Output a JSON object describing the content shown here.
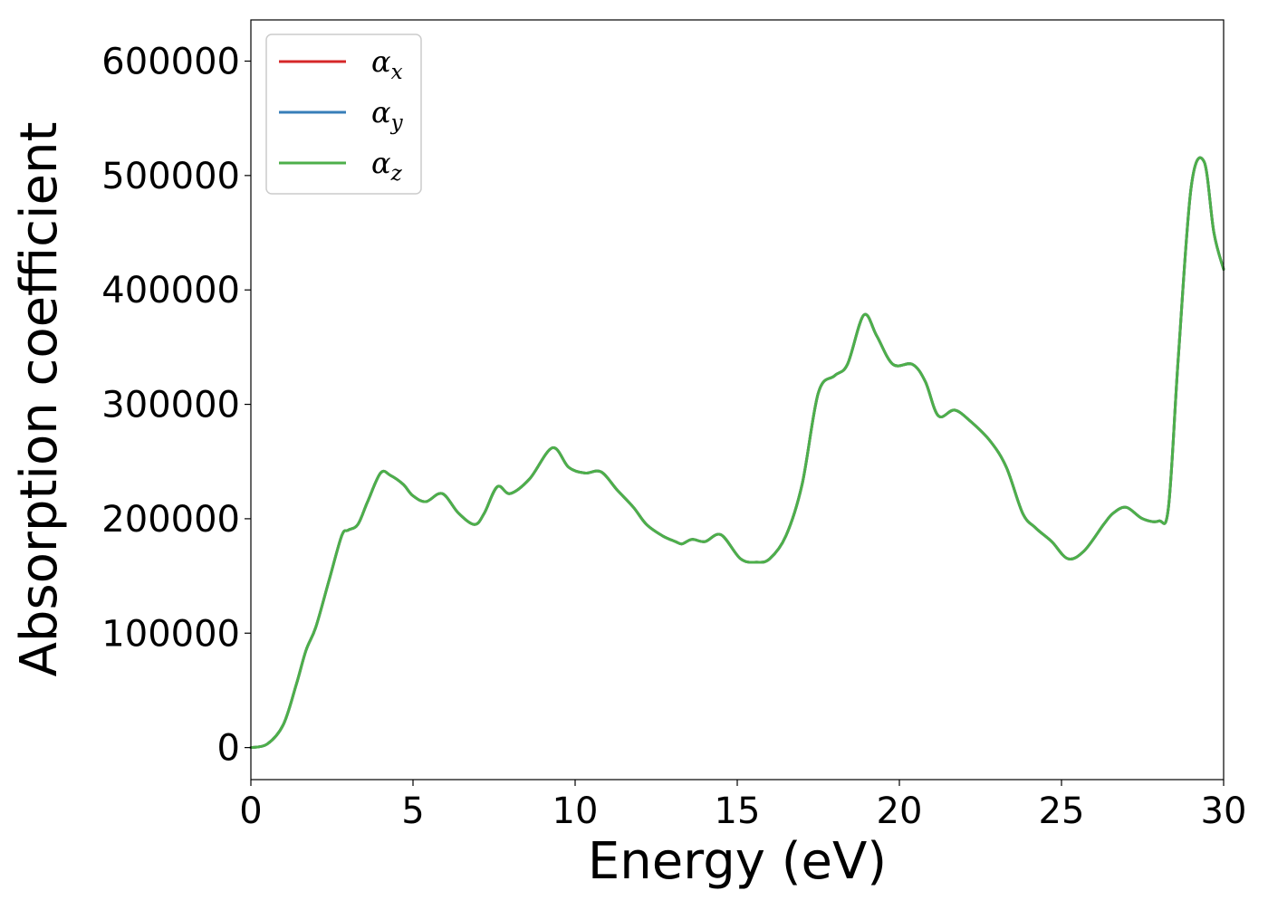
{
  "chart_data": {
    "type": "line",
    "title": "",
    "xlabel": "Energy (eV)",
    "ylabel": "Absorption coefficient",
    "xlim": [
      0,
      30
    ],
    "ylim": [
      -28000,
      636000
    ],
    "xticks": [
      0,
      5,
      10,
      15,
      20,
      25,
      30
    ],
    "xtick_labels": [
      "0",
      "5",
      "10",
      "15",
      "20",
      "25",
      "30"
    ],
    "yticks": [
      0,
      100000,
      200000,
      300000,
      400000,
      500000,
      600000
    ],
    "ytick_labels": [
      "0",
      "100000",
      "200000",
      "300000",
      "400000",
      "500000",
      "600000"
    ],
    "grid": false,
    "legend_position": "top-left",
    "x": [
      0,
      0.5,
      1.0,
      1.4,
      1.7,
      2.0,
      2.4,
      2.8,
      3.0,
      3.3,
      3.6,
      4.0,
      4.3,
      4.7,
      5.0,
      5.4,
      5.9,
      6.4,
      6.9,
      7.2,
      7.6,
      8.0,
      8.6,
      9.3,
      9.8,
      10.3,
      10.8,
      11.3,
      11.8,
      12.2,
      12.7,
      13.1,
      13.3,
      13.6,
      14.0,
      14.5,
      15.1,
      15.6,
      16.0,
      16.5,
      17.0,
      17.5,
      18.0,
      18.4,
      18.9,
      19.3,
      19.8,
      20.4,
      20.8,
      21.2,
      21.7,
      22.2,
      22.8,
      23.3,
      23.8,
      24.2,
      24.7,
      25.2,
      25.7,
      26.3,
      26.6,
      27.0,
      27.5,
      28.0,
      28.3,
      28.6,
      29.0,
      29.4,
      29.7,
      30.0
    ],
    "series": [
      {
        "name": "α_x",
        "label_main": "α",
        "label_sub": "x",
        "color": "#d62728",
        "values": [
          0,
          3000,
          20000,
          55000,
          85000,
          105000,
          145000,
          185000,
          190000,
          195000,
          215000,
          240000,
          238000,
          230000,
          220000,
          215000,
          222000,
          205000,
          195000,
          205000,
          228000,
          222000,
          235000,
          262000,
          245000,
          240000,
          241000,
          225000,
          210000,
          195000,
          185000,
          180000,
          178000,
          182000,
          180000,
          186000,
          165000,
          162000,
          165000,
          185000,
          230000,
          310000,
          325000,
          335000,
          378000,
          360000,
          335000,
          335000,
          320000,
          290000,
          295000,
          285000,
          268000,
          245000,
          205000,
          192000,
          180000,
          165000,
          172000,
          195000,
          205000,
          210000,
          200000,
          198000,
          210000,
          340000,
          490000,
          512000,
          450000,
          418000
        ]
      },
      {
        "name": "α_y",
        "label_main": "α",
        "label_sub": "y",
        "color": "#377eb8",
        "values": [
          0,
          3000,
          20000,
          55000,
          85000,
          105000,
          145000,
          185000,
          190000,
          195000,
          215000,
          240000,
          238000,
          230000,
          220000,
          215000,
          222000,
          205000,
          195000,
          205000,
          228000,
          222000,
          235000,
          262000,
          245000,
          240000,
          241000,
          225000,
          210000,
          195000,
          185000,
          180000,
          178000,
          182000,
          180000,
          186000,
          165000,
          162000,
          165000,
          185000,
          230000,
          310000,
          325000,
          335000,
          378000,
          360000,
          335000,
          335000,
          320000,
          290000,
          295000,
          285000,
          268000,
          245000,
          205000,
          192000,
          180000,
          165000,
          172000,
          195000,
          205000,
          210000,
          200000,
          198000,
          210000,
          340000,
          490000,
          512000,
          450000,
          418000
        ]
      },
      {
        "name": "α_z",
        "label_main": "α",
        "label_sub": "z",
        "color": "#4daf4a",
        "values": [
          0,
          3000,
          20000,
          55000,
          85000,
          105000,
          145000,
          185000,
          190000,
          195000,
          215000,
          240000,
          238000,
          230000,
          220000,
          215000,
          222000,
          205000,
          195000,
          205000,
          228000,
          222000,
          235000,
          262000,
          245000,
          240000,
          241000,
          225000,
          210000,
          195000,
          185000,
          180000,
          178000,
          182000,
          180000,
          186000,
          165000,
          162000,
          165000,
          185000,
          230000,
          310000,
          325000,
          335000,
          378000,
          360000,
          335000,
          335000,
          320000,
          290000,
          295000,
          285000,
          268000,
          245000,
          205000,
          192000,
          180000,
          165000,
          172000,
          195000,
          205000,
          210000,
          200000,
          198000,
          210000,
          340000,
          490000,
          512000,
          450000,
          418000
        ]
      }
    ]
  }
}
